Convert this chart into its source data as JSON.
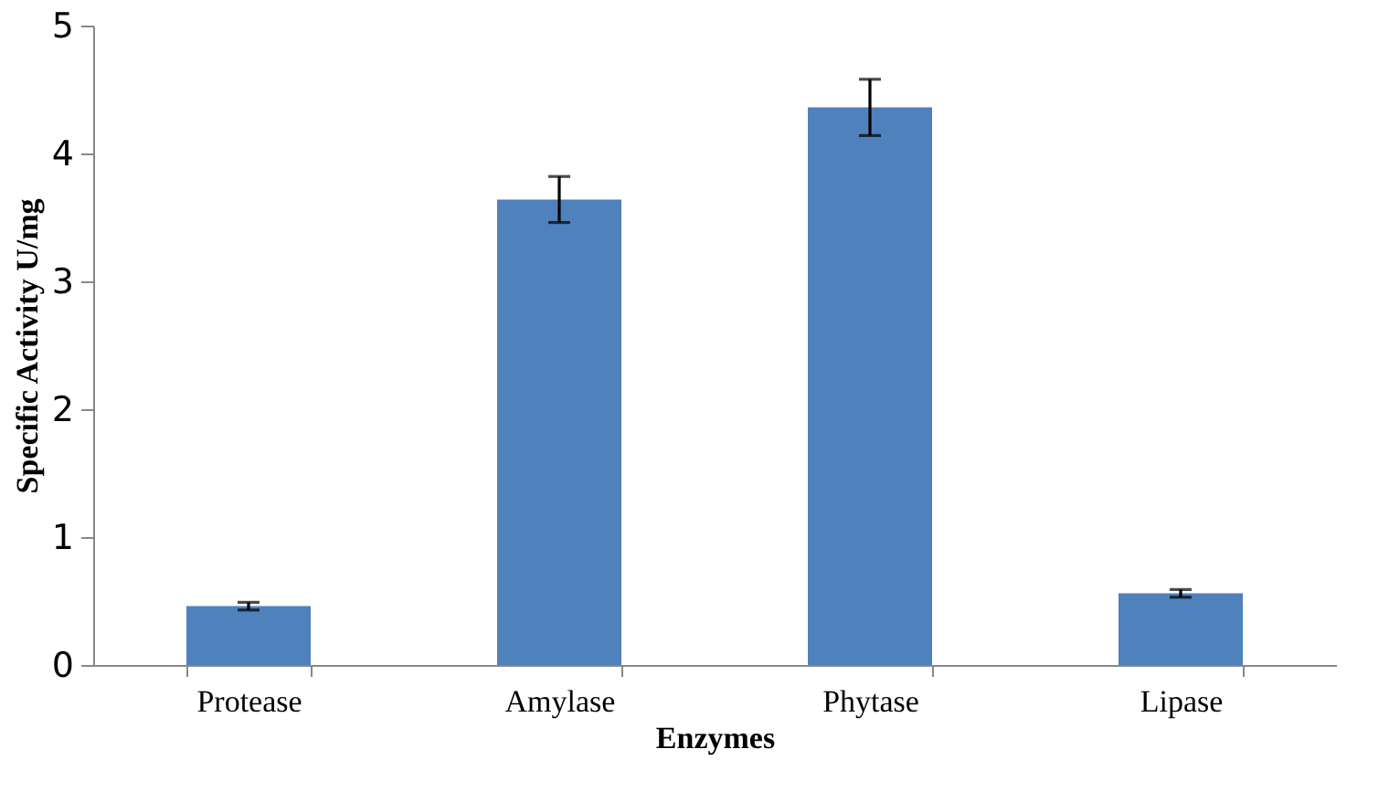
{
  "chart_data": {
    "type": "bar",
    "xlabel": "Enzymes",
    "ylabel": "Specific Activity U/mg",
    "categories": [
      "Protease",
      "Amylase",
      "Phytase",
      "Lipase"
    ],
    "values": [
      0.46,
      3.64,
      4.36,
      0.56
    ],
    "errors": [
      0.03,
      0.18,
      0.22,
      0.03
    ],
    "color": "#4f81bd",
    "ylim": [
      0,
      5
    ],
    "yticks": [
      0,
      1,
      2,
      3,
      4,
      5
    ],
    "grid": false
  }
}
